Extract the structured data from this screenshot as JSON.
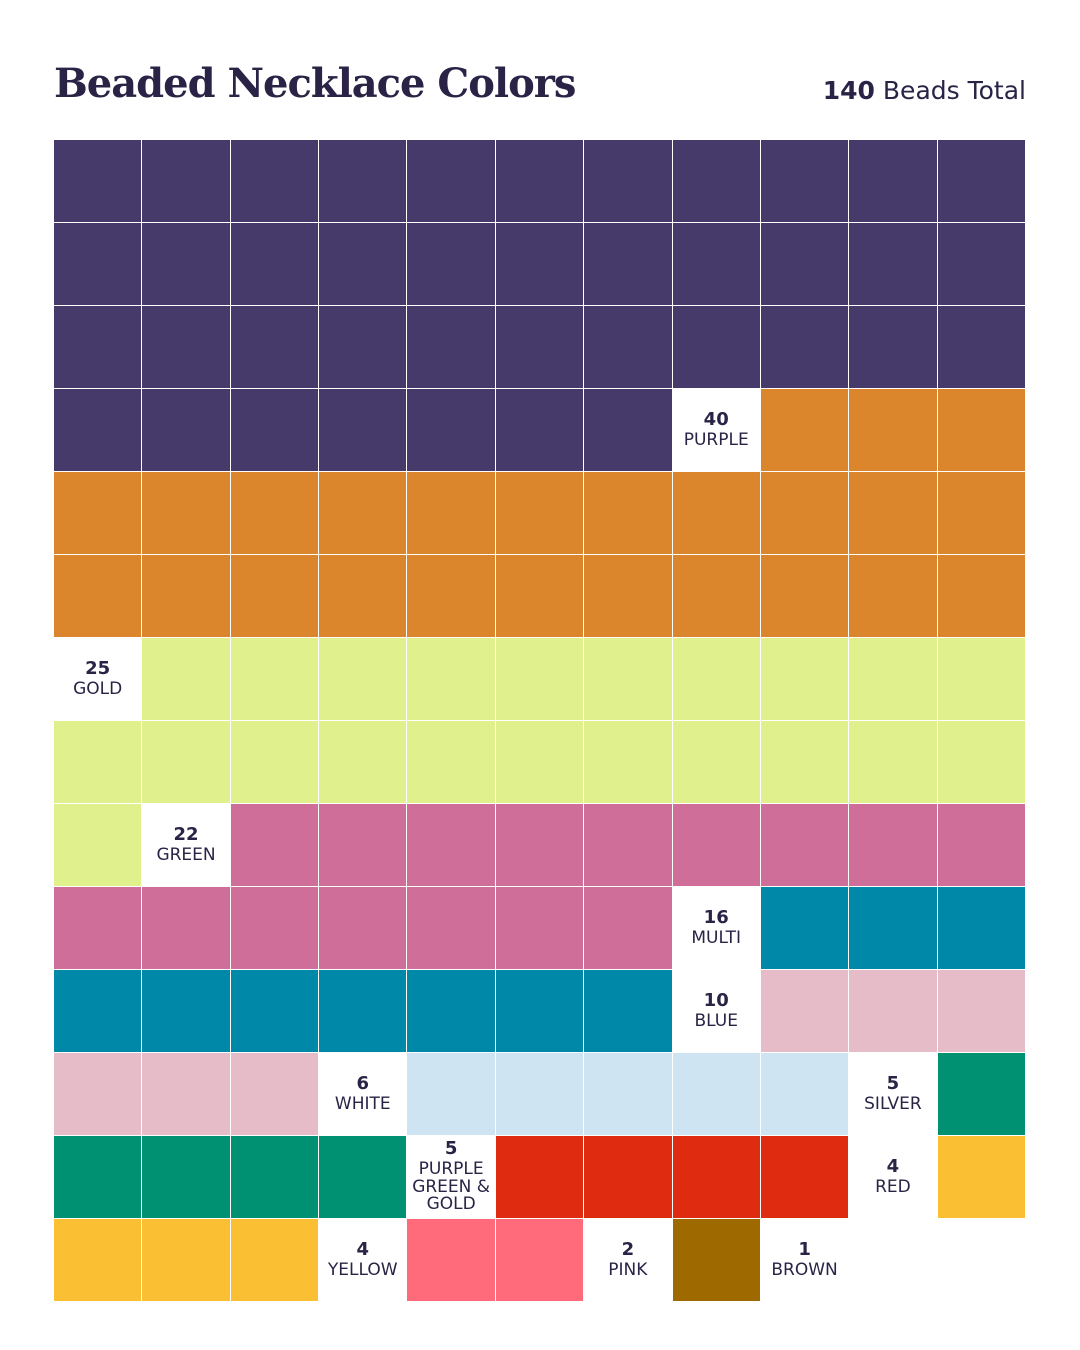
{
  "chart_data": {
    "type": "waffle",
    "title": "Beaded Necklace Colors",
    "total": {
      "value": 140,
      "label": "Beads Total"
    },
    "series": [
      {
        "name": "PURPLE",
        "value": 40,
        "color": "#463a6b"
      },
      {
        "name": "GOLD",
        "value": 25,
        "color": "#db862d"
      },
      {
        "name": "GREEN",
        "value": 22,
        "color": "#dff08c"
      },
      {
        "name": "MULTI",
        "value": 16,
        "color": "#cf6f99"
      },
      {
        "name": "BLUE",
        "value": 10,
        "color": "#0088a8"
      },
      {
        "name": "WHITE",
        "value": 6,
        "color": "#e5bcc8"
      },
      {
        "name": "SILVER",
        "value": 5,
        "color": "#cfe4f3"
      },
      {
        "name": "PURPLE GREEN & GOLD",
        "value": 5,
        "color": "#009072"
      },
      {
        "name": "RED",
        "value": 4,
        "color": "#df2b10"
      },
      {
        "name": "YELLOW",
        "value": 4,
        "color": "#fbbf33"
      },
      {
        "name": "PINK",
        "value": 2,
        "color": "#ff6b7b"
      },
      {
        "name": "BROWN",
        "value": 1,
        "color": "#9e6a00"
      }
    ]
  }
}
